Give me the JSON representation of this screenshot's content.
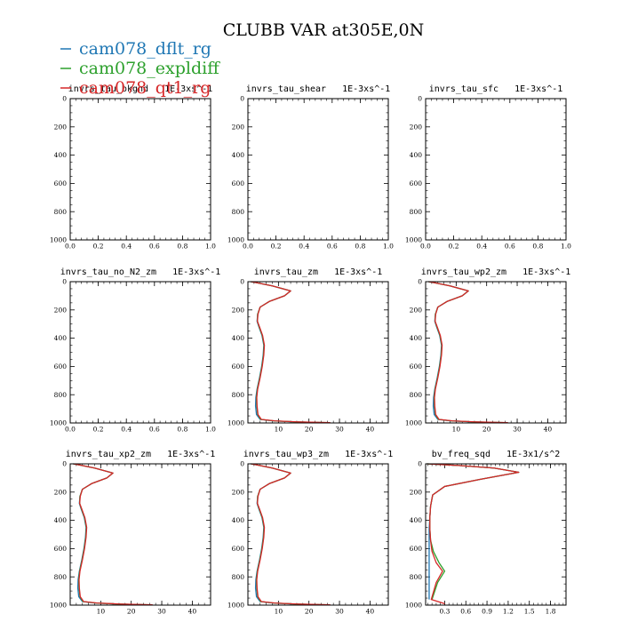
{
  "figure": {
    "title": "CLUBB VAR at305E,0N"
  },
  "legend": [
    {
      "name": "cam078_dflt_rg",
      "color": "#1f77b4"
    },
    {
      "name": "cam078_expldiff",
      "color": "#2ca02c"
    },
    {
      "name": "cam078_qt1_rg",
      "color": "#d62728"
    }
  ],
  "chart_data": [
    {
      "type": "line",
      "title": "invrs_tau_bkgnd",
      "units": "1E-3xs^-1",
      "xlim": [
        0.0,
        1.0
      ],
      "ylim": [
        0,
        1000
      ],
      "y_inverted": true,
      "xticks": [
        "0.0",
        "0.2",
        "0.4",
        "0.6",
        "0.8",
        "1.0"
      ],
      "yticks": [
        "0",
        "200",
        "400",
        "600",
        "800",
        "1000"
      ],
      "series": []
    },
    {
      "type": "line",
      "title": "invrs_tau_shear",
      "units": "1E-3xs^-1",
      "xlim": [
        0.0,
        1.0
      ],
      "ylim": [
        0,
        1000
      ],
      "y_inverted": true,
      "xticks": [
        "0.0",
        "0.2",
        "0.4",
        "0.6",
        "0.8",
        "1.0"
      ],
      "yticks": [
        "0",
        "200",
        "400",
        "600",
        "800",
        "1000"
      ],
      "series": []
    },
    {
      "type": "line",
      "title": "invrs_tau_sfc",
      "units": "1E-3xs^-1",
      "xlim": [
        0.0,
        1.0
      ],
      "ylim": [
        0,
        1000
      ],
      "y_inverted": true,
      "xticks": [
        "0.0",
        "0.2",
        "0.4",
        "0.6",
        "0.8",
        "1.0"
      ],
      "yticks": [
        "0",
        "200",
        "400",
        "600",
        "800",
        "1000"
      ],
      "series": []
    },
    {
      "type": "line",
      "title": "invrs_tau_no_N2_zm",
      "units": "1E-3xs^-1",
      "xlim": [
        0.0,
        1.0
      ],
      "ylim": [
        0,
        1000
      ],
      "y_inverted": true,
      "xticks": [
        "0.0",
        "0.2",
        "0.4",
        "0.6",
        "0.8",
        "1.0"
      ],
      "yticks": [
        "0",
        "200",
        "400",
        "600",
        "800",
        "1000"
      ],
      "series": []
    },
    {
      "type": "line",
      "title": "invrs_tau_zm",
      "units": "1E-3xs^-1",
      "xlim": [
        0,
        46
      ],
      "ylim": [
        0,
        1000
      ],
      "y_inverted": true,
      "xticks": [
        "10",
        "20",
        "30",
        "40"
      ],
      "xtick_values": [
        10,
        20,
        30,
        40
      ],
      "yticks": [
        "0",
        "200",
        "400",
        "600",
        "800",
        "1000"
      ],
      "series": [
        {
          "color": "#1f77b4",
          "x": [
            1,
            3,
            8,
            14,
            12,
            7,
            4,
            3.2,
            3,
            3.6,
            4.6,
            5.2,
            5.0,
            4.5,
            3.8,
            3.0,
            2.6,
            2.5,
            2.8,
            4,
            8,
            15,
            25
          ],
          "y": [
            0,
            8,
            30,
            65,
            100,
            140,
            180,
            230,
            280,
            320,
            380,
            450,
            520,
            600,
            680,
            760,
            820,
            880,
            940,
            975,
            985,
            992,
            998
          ]
        },
        {
          "color": "#2ca02c",
          "x": [
            1,
            3,
            8,
            14,
            12,
            7,
            4,
            3.2,
            3.1,
            3.7,
            4.7,
            5.3,
            5.1,
            4.6,
            3.9,
            3.1,
            2.8,
            2.9,
            3.2,
            4.2,
            8.4,
            15.5,
            26
          ],
          "y": [
            0,
            8,
            30,
            65,
            100,
            140,
            180,
            230,
            280,
            320,
            380,
            450,
            520,
            600,
            680,
            760,
            820,
            880,
            940,
            975,
            985,
            992,
            998
          ]
        },
        {
          "color": "#d62728",
          "x": [
            1,
            3,
            8,
            14,
            12,
            7,
            4,
            3.3,
            3.1,
            3.8,
            4.8,
            5.4,
            5.2,
            4.7,
            4.0,
            3.2,
            2.9,
            3.0,
            3.3,
            4.4,
            8.8,
            16,
            27
          ],
          "y": [
            0,
            8,
            30,
            65,
            100,
            140,
            180,
            230,
            280,
            320,
            380,
            450,
            520,
            600,
            680,
            760,
            820,
            880,
            940,
            975,
            985,
            992,
            998
          ]
        }
      ]
    },
    {
      "type": "line",
      "title": "invrs_tau_wp2_zm",
      "units": "1E-3xs^-1",
      "xlim": [
        0,
        46
      ],
      "ylim": [
        0,
        1000
      ],
      "y_inverted": true,
      "xticks": [
        "10",
        "20",
        "30",
        "40"
      ],
      "xtick_values": [
        10,
        20,
        30,
        40
      ],
      "yticks": [
        "0",
        "200",
        "400",
        "600",
        "800",
        "1000"
      ],
      "series": [
        {
          "color": "#1f77b4",
          "x": [
            1,
            3,
            8,
            14,
            12,
            7,
            4,
            3.2,
            3,
            3.6,
            4.6,
            5.2,
            5.0,
            4.5,
            3.8,
            3.0,
            2.6,
            2.5,
            2.8,
            4,
            8,
            15,
            25
          ],
          "y": [
            0,
            8,
            30,
            65,
            100,
            140,
            180,
            230,
            280,
            320,
            380,
            450,
            520,
            600,
            680,
            760,
            820,
            880,
            940,
            975,
            985,
            992,
            998
          ]
        },
        {
          "color": "#2ca02c",
          "x": [
            1,
            3,
            8,
            14,
            12,
            7,
            4,
            3.2,
            3.1,
            3.7,
            4.7,
            5.3,
            5.1,
            4.6,
            3.9,
            3.1,
            2.8,
            2.9,
            3.2,
            4.2,
            8.4,
            15.5,
            26
          ],
          "y": [
            0,
            8,
            30,
            65,
            100,
            140,
            180,
            230,
            280,
            320,
            380,
            450,
            520,
            600,
            680,
            760,
            820,
            880,
            940,
            975,
            985,
            992,
            998
          ]
        },
        {
          "color": "#d62728",
          "x": [
            1,
            3,
            8,
            14,
            12,
            7,
            4,
            3.3,
            3.1,
            3.8,
            4.8,
            5.4,
            5.2,
            4.7,
            4.0,
            3.2,
            2.9,
            3.0,
            3.3,
            4.4,
            8.8,
            16,
            27
          ],
          "y": [
            0,
            8,
            30,
            65,
            100,
            140,
            180,
            230,
            280,
            320,
            380,
            450,
            520,
            600,
            680,
            760,
            820,
            880,
            940,
            975,
            985,
            992,
            998
          ]
        }
      ]
    },
    {
      "type": "line",
      "title": "invrs_tau_xp2_zm",
      "units": "1E-3xs^-1",
      "xlim": [
        0,
        46
      ],
      "ylim": [
        0,
        1000
      ],
      "y_inverted": true,
      "xticks": [
        "10",
        "20",
        "30",
        "40"
      ],
      "xtick_values": [
        10,
        20,
        30,
        40
      ],
      "yticks": [
        "0",
        "200",
        "400",
        "600",
        "800",
        "1000"
      ],
      "series": [
        {
          "color": "#1f77b4",
          "x": [
            1,
            3,
            8,
            14,
            12,
            7,
            4,
            3.2,
            3,
            3.6,
            4.6,
            5.2,
            5.0,
            4.5,
            3.8,
            3.0,
            2.6,
            2.5,
            2.8,
            4,
            8,
            15,
            25
          ],
          "y": [
            0,
            8,
            30,
            65,
            100,
            140,
            180,
            230,
            280,
            320,
            380,
            450,
            520,
            600,
            680,
            760,
            820,
            880,
            940,
            975,
            985,
            992,
            998
          ]
        },
        {
          "color": "#2ca02c",
          "x": [
            1,
            3,
            8,
            14,
            12,
            7,
            4,
            3.2,
            3.1,
            3.7,
            4.7,
            5.3,
            5.1,
            4.6,
            3.9,
            3.1,
            2.8,
            2.9,
            3.2,
            4.2,
            8.4,
            15.5,
            26
          ],
          "y": [
            0,
            8,
            30,
            65,
            100,
            140,
            180,
            230,
            280,
            320,
            380,
            450,
            520,
            600,
            680,
            760,
            820,
            880,
            940,
            975,
            985,
            992,
            998
          ]
        },
        {
          "color": "#d62728",
          "x": [
            1,
            3,
            8,
            14,
            12,
            7,
            4,
            3.3,
            3.1,
            3.8,
            4.8,
            5.4,
            5.2,
            4.7,
            4.0,
            3.2,
            2.9,
            3.0,
            3.3,
            4.4,
            8.8,
            16,
            27
          ],
          "y": [
            0,
            8,
            30,
            65,
            100,
            140,
            180,
            230,
            280,
            320,
            380,
            450,
            520,
            600,
            680,
            760,
            820,
            880,
            940,
            975,
            985,
            992,
            998
          ]
        }
      ]
    },
    {
      "type": "line",
      "title": "invrs_tau_wp3_zm",
      "units": "1E-3xs^-1",
      "xlim": [
        0,
        46
      ],
      "ylim": [
        0,
        1000
      ],
      "y_inverted": true,
      "xticks": [
        "10",
        "20",
        "30",
        "40"
      ],
      "xtick_values": [
        10,
        20,
        30,
        40
      ],
      "yticks": [
        "0",
        "200",
        "400",
        "600",
        "800",
        "1000"
      ],
      "series": [
        {
          "color": "#1f77b4",
          "x": [
            1,
            3,
            8,
            14,
            12,
            7,
            4,
            3.2,
            3,
            3.6,
            4.6,
            5.2,
            5.0,
            4.5,
            3.8,
            3.0,
            2.6,
            2.5,
            2.8,
            4,
            8,
            15,
            25
          ],
          "y": [
            0,
            8,
            30,
            65,
            100,
            140,
            180,
            230,
            280,
            320,
            380,
            450,
            520,
            600,
            680,
            760,
            820,
            880,
            940,
            975,
            985,
            992,
            998
          ]
        },
        {
          "color": "#2ca02c",
          "x": [
            1,
            3,
            8,
            14,
            12,
            7,
            4,
            3.2,
            3.1,
            3.7,
            4.7,
            5.3,
            5.1,
            4.6,
            3.9,
            3.1,
            2.8,
            2.9,
            3.2,
            4.2,
            8.4,
            15.5,
            26
          ],
          "y": [
            0,
            8,
            30,
            65,
            100,
            140,
            180,
            230,
            280,
            320,
            380,
            450,
            520,
            600,
            680,
            760,
            820,
            880,
            940,
            975,
            985,
            992,
            998
          ]
        },
        {
          "color": "#d62728",
          "x": [
            1,
            3,
            8,
            14,
            12,
            7,
            4,
            3.3,
            3.1,
            3.8,
            4.8,
            5.4,
            5.2,
            4.7,
            4.0,
            3.2,
            2.9,
            3.0,
            3.3,
            4.4,
            8.8,
            16,
            27
          ],
          "y": [
            0,
            8,
            30,
            65,
            100,
            140,
            180,
            230,
            280,
            320,
            380,
            450,
            520,
            600,
            680,
            760,
            820,
            880,
            940,
            975,
            985,
            992,
            998
          ]
        }
      ]
    },
    {
      "type": "line",
      "title": "bv_freq_sqd",
      "units": "1E-3x1/s^2",
      "xlim": [
        0.03,
        2.02
      ],
      "ylim": [
        0,
        1000
      ],
      "y_inverted": true,
      "xticks": [
        "0.3",
        "0.6",
        "0.9",
        "1.2",
        "1.5",
        "1.8"
      ],
      "xtick_values": [
        0.3,
        0.6,
        0.9,
        1.2,
        1.5,
        1.8
      ],
      "yticks": [
        "0",
        "200",
        "400",
        "600",
        "800",
        "1000"
      ],
      "series": [
        {
          "color": "#1f77b4",
          "x": [
            0.05,
            0.5,
            1.0,
            1.35,
            0.8,
            0.3,
            0.13,
            0.1,
            0.09,
            0.08,
            0.08,
            0.08,
            0.08,
            0.08,
            0.08,
            0.08
          ],
          "y": [
            0,
            12,
            30,
            60,
            110,
            160,
            220,
            300,
            380,
            460,
            540,
            620,
            700,
            780,
            860,
            960
          ]
        },
        {
          "color": "#2ca02c",
          "x": [
            0.05,
            0.5,
            1.0,
            1.35,
            0.8,
            0.3,
            0.13,
            0.1,
            0.09,
            0.09,
            0.1,
            0.14,
            0.22,
            0.3,
            0.2,
            0.12
          ],
          "y": [
            0,
            12,
            30,
            60,
            110,
            160,
            220,
            300,
            380,
            460,
            540,
            620,
            700,
            760,
            840,
            960
          ]
        },
        {
          "color": "#d62728",
          "x": [
            0.05,
            0.5,
            1.0,
            1.35,
            0.8,
            0.3,
            0.13,
            0.1,
            0.09,
            0.09,
            0.1,
            0.12,
            0.18,
            0.27,
            0.18,
            0.11,
            0.3
          ],
          "y": [
            0,
            12,
            30,
            60,
            110,
            160,
            220,
            300,
            380,
            460,
            540,
            620,
            700,
            760,
            840,
            960,
            990
          ]
        }
      ]
    }
  ]
}
